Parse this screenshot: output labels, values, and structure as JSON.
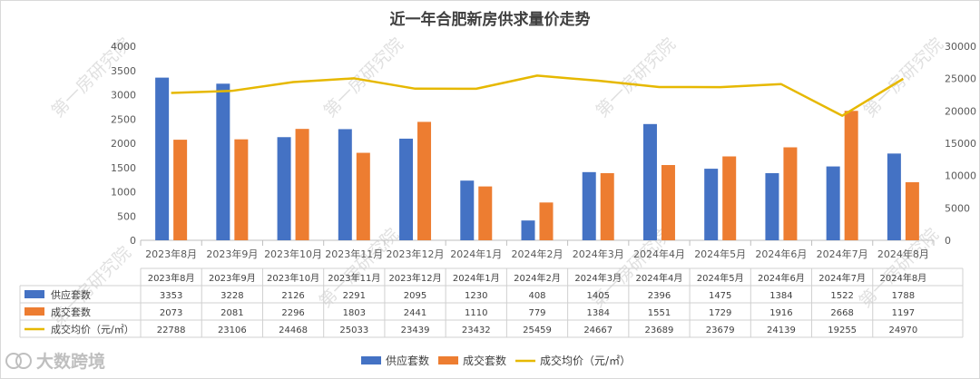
{
  "chart_data": {
    "type": "bar",
    "title": "近一年合肥新房供求量价走势",
    "categories": [
      "2023年8月",
      "2023年9月",
      "2023年10月",
      "2023年11月",
      "2023年12月",
      "2024年1月",
      "2024年2月",
      "2024年3月",
      "2024年4月",
      "2024年5月",
      "2024年6月",
      "2024年7月",
      "2024年8月"
    ],
    "series": [
      {
        "name": "供应套数",
        "type": "bar",
        "axis": "left",
        "color": "#4472C4",
        "values": [
          3353,
          3228,
          2126,
          2291,
          2095,
          1230,
          408,
          1405,
          2396,
          1475,
          1384,
          1522,
          1788
        ]
      },
      {
        "name": "成交套数",
        "type": "bar",
        "axis": "left",
        "color": "#ED7D31",
        "values": [
          2073,
          2081,
          2296,
          1803,
          2441,
          1110,
          779,
          1384,
          1551,
          1729,
          1916,
          2668,
          1197
        ]
      },
      {
        "name": "成交均价（元/㎡）",
        "type": "line",
        "axis": "right",
        "color": "#E6B800",
        "values": [
          22788,
          23106,
          24468,
          25033,
          23439,
          23432,
          25459,
          24667,
          23689,
          23679,
          24139,
          19255,
          24970
        ]
      }
    ],
    "ylim_left": [
      0,
      4000
    ],
    "yticks_left": [
      0,
      500,
      1000,
      1500,
      2000,
      2500,
      3000,
      3500,
      4000
    ],
    "ylim_right": [
      0,
      30000
    ],
    "yticks_right": [
      0,
      5000,
      10000,
      15000,
      20000,
      25000,
      30000
    ],
    "legend_position": "bottom",
    "data_table": true,
    "grid": false
  },
  "watermark": "第一房研究院",
  "logo_text": "大数跨境"
}
